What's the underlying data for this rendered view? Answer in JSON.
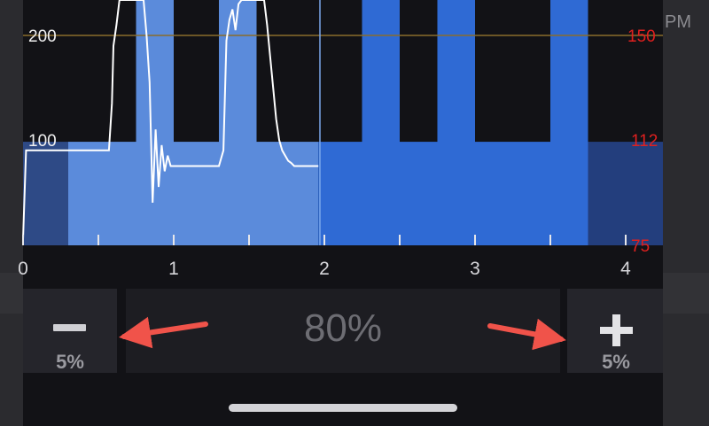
{
  "chart": {
    "left_axis_ticks": [
      "200",
      "100"
    ],
    "right_axis_ticks": [
      "150",
      "112",
      "75"
    ],
    "x_axis_ticks": [
      "0",
      "1",
      "2",
      "3",
      "4"
    ],
    "colors": {
      "background": "#121216",
      "completed_blocks": "#5b8bdb",
      "upcoming_blocks": "#2f6ad4",
      "trace": "#ffffff",
      "threshold_line": "#8a6d2b",
      "right_axis_text": "#e0201f",
      "left_axis_text": "#f0f0f0"
    }
  },
  "chart_data": {
    "type": "line",
    "x_range": [
      0,
      4
    ],
    "left_ylim": [
      0,
      260
    ],
    "right_ylim": [
      75,
      170
    ],
    "left_yticks": [
      100,
      200
    ],
    "right_yticks": [
      75,
      112,
      150
    ],
    "xticks": [
      0,
      1,
      2,
      3,
      4
    ],
    "grid": "horizontal line at 150 (right axis)",
    "blocks": [
      {
        "x_start": 0.0,
        "x_end": 0.3,
        "right_value": 112,
        "status": "completed_dim"
      },
      {
        "x_start": 0.3,
        "x_end": 0.75,
        "right_value": 112,
        "status": "completed"
      },
      {
        "x_start": 0.75,
        "x_end": 1.0,
        "right_value": 165,
        "status": "completed"
      },
      {
        "x_start": 1.0,
        "x_end": 1.3,
        "right_value": 112,
        "status": "completed"
      },
      {
        "x_start": 1.3,
        "x_end": 1.55,
        "right_value": 165,
        "status": "completed"
      },
      {
        "x_start": 1.55,
        "x_end": 1.96,
        "right_value": 112,
        "status": "completed"
      },
      {
        "x_start": 1.96,
        "x_end": 2.25,
        "right_value": 112,
        "status": "upcoming"
      },
      {
        "x_start": 2.25,
        "x_end": 2.5,
        "right_value": 165,
        "status": "upcoming"
      },
      {
        "x_start": 2.5,
        "x_end": 2.75,
        "right_value": 112,
        "status": "upcoming"
      },
      {
        "x_start": 2.75,
        "x_end": 3.0,
        "right_value": 165,
        "status": "upcoming"
      },
      {
        "x_start": 3.0,
        "x_end": 3.5,
        "right_value": 112,
        "status": "upcoming"
      },
      {
        "x_start": 3.5,
        "x_end": 3.75,
        "right_value": 165,
        "status": "upcoming"
      },
      {
        "x_start": 3.75,
        "x_end": 4.0,
        "right_value": 112,
        "status": "upcoming_dim"
      }
    ],
    "trace": {
      "x": [
        0.0,
        0.02,
        0.1,
        0.2,
        0.3,
        0.4,
        0.5,
        0.55,
        0.57,
        0.59,
        0.6,
        0.62,
        0.64,
        0.66,
        0.68,
        0.7,
        0.72,
        0.75,
        0.78,
        0.8,
        0.82,
        0.84,
        0.86,
        0.88,
        0.9,
        0.92,
        0.94,
        0.96,
        0.98,
        1.0,
        1.05,
        1.1,
        1.15,
        1.2,
        1.25,
        1.3,
        1.33,
        1.35,
        1.37,
        1.39,
        1.41,
        1.43,
        1.45,
        1.48,
        1.52,
        1.56,
        1.58,
        1.6,
        1.62,
        1.64,
        1.66,
        1.68,
        1.7,
        1.72,
        1.74,
        1.76,
        1.78,
        1.8,
        1.85,
        1.9,
        1.96
      ],
      "y": [
        5,
        90,
        90,
        90,
        90,
        90,
        90,
        90,
        90,
        135,
        190,
        210,
        245,
        235,
        255,
        255,
        255,
        255,
        255,
        255,
        200,
        155,
        40,
        110,
        55,
        95,
        70,
        85,
        75,
        75,
        75,
        75,
        75,
        75,
        75,
        75,
        90,
        195,
        215,
        225,
        205,
        230,
        245,
        255,
        255,
        255,
        255,
        240,
        210,
        180,
        150,
        120,
        100,
        90,
        85,
        80,
        78,
        75,
        75,
        75,
        75
      ]
    }
  },
  "controls": {
    "decrease_step": "5%",
    "increase_step": "5%",
    "current_value": "80%"
  },
  "background": {
    "peek_text": "PM"
  }
}
